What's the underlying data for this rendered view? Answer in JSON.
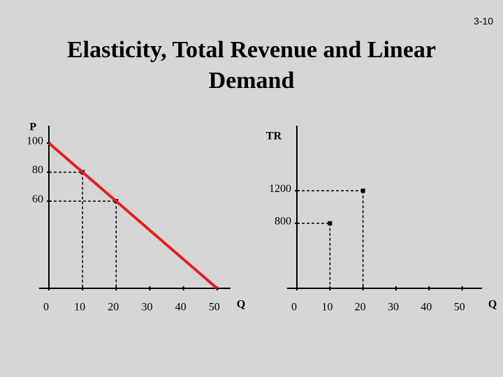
{
  "slide_number": "3-10",
  "title": "Elasticity, Total Revenue and Linear Demand",
  "chart_data": [
    {
      "type": "line",
      "xlabel": "Q",
      "ylabel": "P",
      "x": [
        0,
        50
      ],
      "series": [
        {
          "color": "#e02020",
          "values": [
            100,
            0
          ]
        }
      ],
      "points": {
        "x": [
          10,
          20
        ],
        "values": [
          80,
          60
        ]
      },
      "xlim": [
        0,
        54
      ],
      "ylim": [
        0,
        112
      ],
      "xticks": [
        0,
        10,
        20,
        30,
        40,
        50
      ],
      "yticks": [
        60,
        80,
        100
      ]
    },
    {
      "type": "scatter",
      "xlabel": "Q",
      "ylabel": "TR",
      "x": [
        10,
        20
      ],
      "values": [
        800,
        1200
      ],
      "xlim": [
        0,
        56
      ],
      "ylim": [
        0,
        2000
      ],
      "xticks": [
        0,
        10,
        20,
        30,
        40,
        50
      ],
      "yticks": [
        800,
        1200
      ]
    }
  ]
}
